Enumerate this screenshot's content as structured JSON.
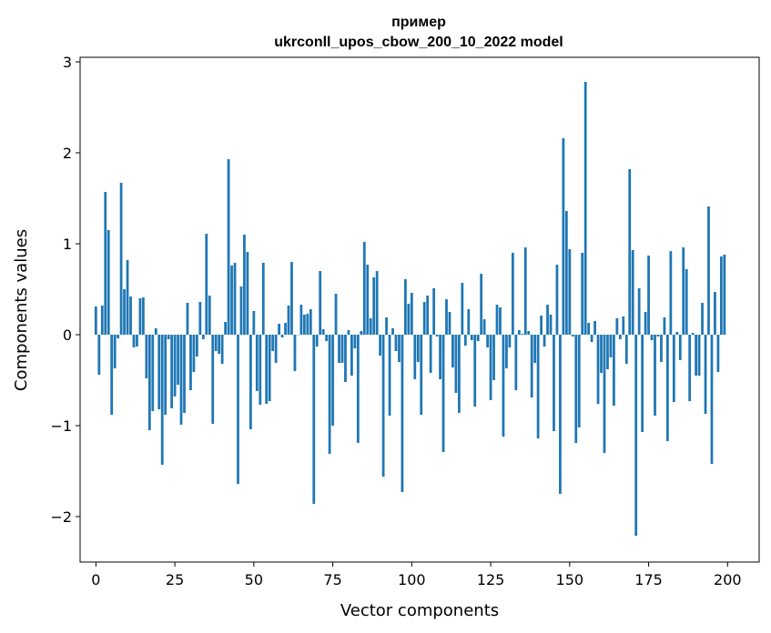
{
  "chart_data": {
    "type": "bar",
    "title": "пример",
    "subtitle": "ukrconll_upos_cbow_200_10_2022 model",
    "xlabel": "Vector components",
    "ylabel": "Components values",
    "xlim": [
      -5,
      210
    ],
    "ylim": [
      -2.5,
      3.05
    ],
    "xticks": [
      0,
      25,
      50,
      75,
      100,
      125,
      150,
      175,
      200
    ],
    "yticks": [
      -2,
      -1,
      0,
      1,
      2,
      3
    ],
    "xtick_labels": [
      "0",
      "25",
      "50",
      "75",
      "100",
      "125",
      "150",
      "175",
      "200"
    ],
    "ytick_labels": [
      "−2",
      "−1",
      "0",
      "1",
      "2",
      "3"
    ],
    "grid": false,
    "bar_color": "#1f77b4",
    "x": [
      0,
      1,
      2,
      3,
      4,
      5,
      6,
      7,
      8,
      9,
      10,
      11,
      12,
      13,
      14,
      15,
      16,
      17,
      18,
      19,
      20,
      21,
      22,
      23,
      24,
      25,
      26,
      27,
      28,
      29,
      30,
      31,
      32,
      33,
      34,
      35,
      36,
      37,
      38,
      39,
      40,
      41,
      42,
      43,
      44,
      45,
      46,
      47,
      48,
      49,
      50,
      51,
      52,
      53,
      54,
      55,
      56,
      57,
      58,
      59,
      60,
      61,
      62,
      63,
      64,
      65,
      66,
      67,
      68,
      69,
      70,
      71,
      72,
      73,
      74,
      75,
      76,
      77,
      78,
      79,
      80,
      81,
      82,
      83,
      84,
      85,
      86,
      87,
      88,
      89,
      90,
      91,
      92,
      93,
      94,
      95,
      96,
      97,
      98,
      99,
      100,
      101,
      102,
      103,
      104,
      105,
      106,
      107,
      108,
      109,
      110,
      111,
      112,
      113,
      114,
      115,
      116,
      117,
      118,
      119,
      120,
      121,
      122,
      123,
      124,
      125,
      126,
      127,
      128,
      129,
      130,
      131,
      132,
      133,
      134,
      135,
      136,
      137,
      138,
      139,
      140,
      141,
      142,
      143,
      144,
      145,
      146,
      147,
      148,
      149,
      150,
      151,
      152,
      153,
      154,
      155,
      156,
      157,
      158,
      159,
      160,
      161,
      162,
      163,
      164,
      165,
      166,
      167,
      168,
      169,
      170,
      171,
      172,
      173,
      174,
      175,
      176,
      177,
      178,
      179,
      180,
      181,
      182,
      183,
      184,
      185,
      186,
      187,
      188,
      189,
      190,
      191,
      192,
      193,
      194,
      195,
      196,
      197,
      198,
      199
    ],
    "values": [
      0.31,
      -0.44,
      0.32,
      1.57,
      1.15,
      -0.88,
      -0.37,
      -0.04,
      1.67,
      0.5,
      0.82,
      0.42,
      -0.14,
      -0.13,
      0.4,
      0.41,
      -0.48,
      -1.05,
      -0.84,
      0.07,
      -0.82,
      -1.43,
      -0.88,
      -0.05,
      -0.81,
      -0.68,
      -0.55,
      -0.99,
      -0.86,
      0.35,
      -0.61,
      -0.41,
      -0.24,
      0.36,
      -0.05,
      1.11,
      0.43,
      -0.98,
      -0.18,
      -0.21,
      -0.32,
      0.14,
      1.93,
      0.76,
      0.79,
      -1.64,
      0.53,
      1.1,
      0.91,
      -1.04,
      0.26,
      -0.62,
      -0.77,
      0.79,
      -0.76,
      -0.73,
      -0.18,
      -0.31,
      0.12,
      -0.03,
      0.13,
      0.32,
      0.8,
      -0.4,
      0.0,
      0.33,
      0.22,
      0.23,
      0.28,
      -1.86,
      -0.13,
      0.7,
      0.06,
      -0.07,
      -1.31,
      -1.0,
      0.45,
      -0.31,
      -0.31,
      -0.52,
      0.05,
      -0.45,
      -0.15,
      -1.19,
      0.04,
      1.02,
      0.77,
      0.18,
      0.63,
      0.7,
      -0.23,
      -1.56,
      0.19,
      -0.89,
      0.07,
      -0.18,
      -0.3,
      -1.73,
      0.61,
      0.34,
      0.46,
      -0.49,
      -0.3,
      -0.88,
      0.36,
      0.43,
      -0.42,
      0.51,
      -0.02,
      -0.49,
      -1.29,
      0.39,
      0.25,
      -0.36,
      -0.64,
      -0.86,
      0.57,
      -0.12,
      0.28,
      -0.06,
      -0.79,
      -0.07,
      0.67,
      0.17,
      -0.14,
      -0.72,
      -0.5,
      0.33,
      0.3,
      -1.12,
      -0.37,
      -0.14,
      0.9,
      -0.61,
      0.05,
      0.01,
      0.96,
      0.04,
      -0.69,
      -0.31,
      -1.14,
      0.21,
      -0.13,
      0.33,
      0.22,
      -1.06,
      0.77,
      -1.75,
      2.16,
      1.36,
      0.94,
      -0.02,
      -1.19,
      -1.02,
      0.9,
      2.78,
      0.13,
      -0.08,
      0.15,
      -0.76,
      -0.42,
      -1.3,
      -0.38,
      -0.25,
      -0.78,
      0.18,
      -0.05,
      0.2,
      -0.32,
      1.82,
      0.93,
      -2.21,
      0.51,
      -1.07,
      0.25,
      0.87,
      -0.06,
      -0.89,
      -0.02,
      -0.3,
      0.19,
      -1.17,
      0.92,
      -0.74,
      0.03,
      -0.28,
      0.96,
      0.72,
      -0.73,
      0.02,
      -0.45,
      -0.45,
      0.35,
      -0.87,
      1.41,
      -1.42,
      0.47,
      -0.41,
      0.86,
      0.88
    ]
  }
}
